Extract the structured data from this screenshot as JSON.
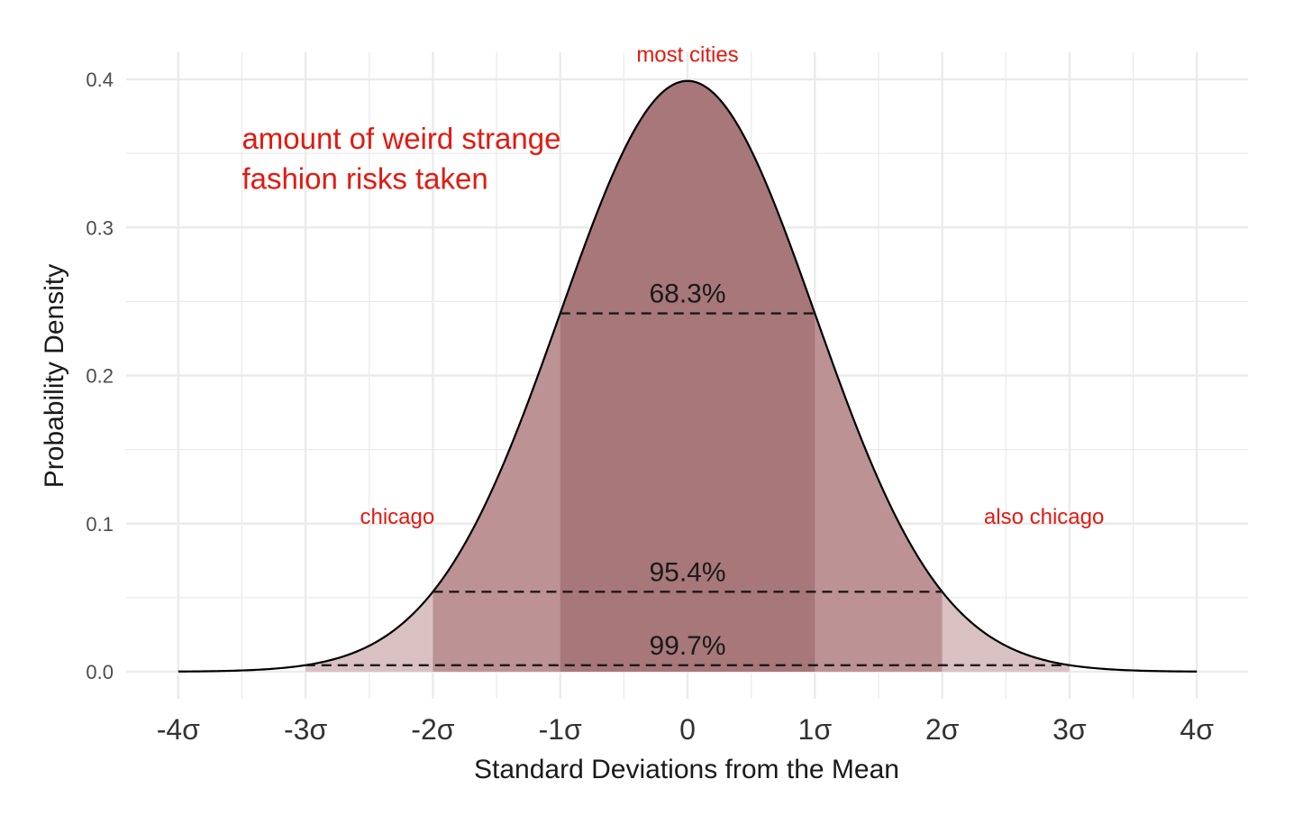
{
  "chart_data": {
    "type": "area",
    "xlabel": "Standard Deviations from the Mean",
    "ylabel": "Probability Density",
    "xlim": [
      -4.2,
      4.2
    ],
    "ylim": [
      -0.016,
      0.41
    ],
    "x_ticks": [
      {
        "value": -4,
        "label": "-4σ"
      },
      {
        "value": -3,
        "label": "-3σ"
      },
      {
        "value": -2,
        "label": "-2σ"
      },
      {
        "value": -1,
        "label": "-1σ"
      },
      {
        "value": 0,
        "label": "0"
      },
      {
        "value": 1,
        "label": "1σ"
      },
      {
        "value": 2,
        "label": "2σ"
      },
      {
        "value": 3,
        "label": "3σ"
      },
      {
        "value": 4,
        "label": "4σ"
      }
    ],
    "y_ticks": [
      {
        "value": 0.0,
        "label": "0.0"
      },
      {
        "value": 0.1,
        "label": "0.1"
      },
      {
        "value": 0.2,
        "label": "0.2"
      },
      {
        "value": 0.3,
        "label": "0.3"
      },
      {
        "value": 0.4,
        "label": "0.4"
      }
    ],
    "grid": true,
    "curve": {
      "distribution": "standard normal",
      "mean": 0,
      "sd": 1,
      "x_range": [
        -4,
        4
      ]
    },
    "bands": [
      {
        "from": -3,
        "to": 3,
        "label": "99.7%",
        "line_y": 0.0044,
        "color": "#d9c0c1"
      },
      {
        "from": -2,
        "to": 2,
        "label": "95.4%",
        "line_y": 0.054,
        "color": "#bd9294"
      },
      {
        "from": -1,
        "to": 1,
        "label": "68.3%",
        "line_y": 0.242,
        "color": "#a7777a"
      }
    ],
    "annotations": [
      {
        "text": "most cities",
        "x": 0,
        "y": 0.412,
        "color": "#e3190f"
      },
      {
        "text": "chicago",
        "x": -2.28,
        "y": 0.1,
        "color": "#e3190f"
      },
      {
        "text": "also chicago",
        "x": 2.8,
        "y": 0.1,
        "color": "#e3190f"
      },
      {
        "text": "amount of weird strange",
        "x": -3.5,
        "y": 0.353,
        "color": "#e3190f"
      },
      {
        "text": "fashion risks taken",
        "x": -3.5,
        "y": 0.326,
        "color": "#e3190f"
      }
    ],
    "colors": {
      "curve": "#000000",
      "grid": "#ebebeb",
      "annotation": "#e3190f"
    }
  }
}
